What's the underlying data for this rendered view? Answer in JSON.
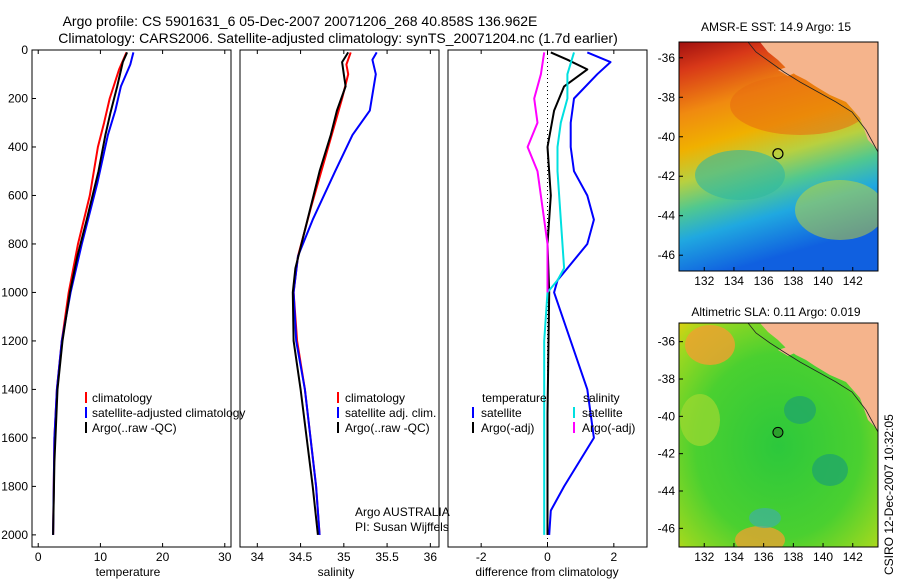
{
  "header": {
    "line1": "Argo profile: CS 5901631_6 05-Dec-2007 20071206_268 40.858S 136.962E",
    "line2": "Climatology: CARS2006. Satellite-adjusted climatology: synTS_20071204.nc (1.7d earlier)"
  },
  "colors": {
    "climatology": "#ff0000",
    "satellite": "#0000ff",
    "argo": "#000000",
    "sat_salinity_diff": "#00e0e0",
    "argo_salinity_diff": "#ff00ff",
    "land": "#f5b48c",
    "circle_fill": "#2ca02c"
  },
  "side_label": "CSIRO 12-Dec-2007 10:32:05",
  "chart_data": [
    {
      "type": "line",
      "xlabel": "temperature",
      "xlim": [
        -1,
        31
      ],
      "xticks": [
        0,
        10,
        20,
        30
      ],
      "ylim": [
        2050,
        0
      ],
      "yticks": [
        0,
        200,
        400,
        600,
        800,
        1000,
        1200,
        1400,
        1600,
        1800,
        2000
      ],
      "legend": [
        "climatology",
        "satellite-adjusted climatology",
        "Argo(..raw -QC)"
      ],
      "series": [
        {
          "name": "climatology",
          "color": "#ff0000",
          "x": [
            14.2,
            13.0,
            11.5,
            10.6,
            9.6,
            8.3,
            6.4,
            4.9,
            3.8,
            3.0,
            2.6,
            2.4
          ],
          "y": [
            10,
            80,
            200,
            300,
            400,
            600,
            800,
            1000,
            1200,
            1400,
            1600,
            2000
          ]
        },
        {
          "name": "satellite-adjusted climatology",
          "color": "#0000ff",
          "x": [
            15.3,
            14.8,
            13.3,
            12.4,
            11.2,
            9.5,
            7.0,
            5.2,
            3.8,
            3.0,
            2.6,
            2.4
          ],
          "y": [
            10,
            60,
            150,
            250,
            350,
            550,
            800,
            1000,
            1200,
            1400,
            1600,
            2000
          ]
        },
        {
          "name": "Argo(..raw -QC)",
          "color": "#000000",
          "x": [
            14.3,
            13.6,
            12.7,
            11.6,
            10.8,
            9.7,
            7.8,
            6.3,
            5.1,
            3.9,
            3.1,
            2.6,
            2.4
          ],
          "y": [
            10,
            50,
            150,
            260,
            350,
            500,
            700,
            850,
            1000,
            1200,
            1400,
            1700,
            2000
          ]
        }
      ]
    },
    {
      "type": "line",
      "xlabel": "salinity",
      "xlim": [
        33.8,
        36.1
      ],
      "xticks": [
        34,
        34.5,
        35,
        35.5,
        36
      ],
      "ylim": [
        2050,
        0
      ],
      "legend": [
        "climatology",
        "satellite adj. clim.",
        "Argo(..raw -QC)"
      ],
      "annotations": [
        "Argo AUSTRALIA",
        "PI: Susan Wijffels"
      ],
      "series": [
        {
          "name": "climatology",
          "color": "#ff0000",
          "x": [
            35.08,
            35.03,
            35.05,
            34.98,
            34.9,
            34.78,
            34.62,
            34.47,
            34.42,
            34.46,
            34.55,
            34.68,
            34.72
          ],
          "y": [
            10,
            60,
            100,
            200,
            300,
            450,
            650,
            850,
            1000,
            1200,
            1400,
            1800,
            2000
          ]
        },
        {
          "name": "satellite adj. clim.",
          "color": "#0000ff",
          "x": [
            35.38,
            35.33,
            35.37,
            35.3,
            35.1,
            34.9,
            34.64,
            34.47,
            34.42,
            34.45,
            34.55,
            34.68,
            34.72
          ],
          "y": [
            10,
            40,
            100,
            250,
            350,
            500,
            700,
            850,
            1000,
            1200,
            1400,
            1800,
            2000
          ]
        },
        {
          "name": "Argo(..raw -QC)",
          "color": "#000000",
          "x": [
            35.05,
            34.98,
            35.0,
            35.02,
            34.92,
            34.85,
            34.72,
            34.58,
            34.44,
            34.41,
            34.42,
            34.5,
            34.64,
            34.7
          ],
          "y": [
            10,
            50,
            100,
            150,
            250,
            350,
            500,
            700,
            900,
            1000,
            1200,
            1400,
            1800,
            2000
          ]
        }
      ]
    },
    {
      "type": "line",
      "xlabel": "difference from climatology",
      "xlim": [
        -3,
        3
      ],
      "xticks": [
        -2,
        0,
        2
      ],
      "ylim": [
        2050,
        0
      ],
      "legend_groups": [
        {
          "title": "temperature",
          "entries": [
            "satellite",
            "Argo(-adj)"
          ]
        },
        {
          "title": "salinity",
          "entries": [
            "satellite",
            "Argo(-adj)"
          ]
        }
      ],
      "series": [
        {
          "name": "temperature satellite",
          "color": "#0000ff",
          "x": [
            1.2,
            1.9,
            1.5,
            0.8,
            0.7,
            0.7,
            0.8,
            1.2,
            1.4,
            1.2,
            0.6,
            0.3,
            0.2,
            0.7,
            1.2,
            1.4,
            0.5,
            0.1,
            0.05
          ],
          "y": [
            10,
            50,
            100,
            200,
            300,
            400,
            500,
            600,
            700,
            800,
            900,
            950,
            1000,
            1200,
            1400,
            1600,
            1800,
            1900,
            2000
          ]
        },
        {
          "name": "temperature Argo(-adj)",
          "color": "#000000",
          "x": [
            0.1,
            0.6,
            1.2,
            0.5,
            0.2,
            0.0,
            0.1,
            0.0,
            0.05,
            0.0,
            0.0
          ],
          "y": [
            10,
            40,
            80,
            150,
            250,
            400,
            600,
            800,
            1000,
            1500,
            2000
          ]
        },
        {
          "name": "salinity satellite",
          "color": "#00e0e0",
          "x": [
            0.8,
            0.6,
            0.6,
            0.4,
            0.3,
            0.3,
            0.4,
            0.5,
            0.3,
            0.0,
            -0.1,
            -0.1,
            -0.1
          ],
          "y": [
            10,
            100,
            200,
            300,
            400,
            500,
            700,
            900,
            950,
            1000,
            1200,
            1600,
            2000
          ]
        },
        {
          "name": "salinity Argo(-adj)",
          "color": "#ff00ff",
          "x": [
            -0.1,
            -0.2,
            -0.4,
            -0.3,
            -0.6,
            -0.3,
            -0.1,
            0.0,
            0.0,
            0.0
          ],
          "y": [
            10,
            100,
            200,
            300,
            400,
            500,
            700,
            800,
            900,
            1000
          ]
        }
      ]
    }
  ],
  "maps": [
    {
      "title": "AMSR-E SST: 14.9 Argo: 15",
      "xticks": [
        "132",
        "134",
        "136",
        "138",
        "140",
        "142"
      ],
      "yticks": [
        "-36",
        "-38",
        "-40",
        "-42",
        "-44",
        "-46"
      ],
      "argo_lon": 136.962,
      "argo_lat": -40.858
    },
    {
      "title": "Altimetric SLA: 0.11 Argo: 0.019",
      "xticks": [
        "132",
        "134",
        "136",
        "138",
        "140",
        "142"
      ],
      "yticks": [
        "-36",
        "-38",
        "-40",
        "-42",
        "-44",
        "-46"
      ],
      "argo_lon": 136.962,
      "argo_lat": -40.858
    }
  ]
}
